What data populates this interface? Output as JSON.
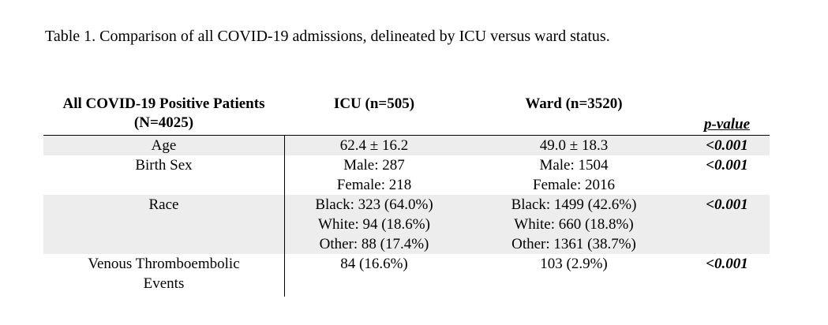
{
  "caption": "Table 1. Comparison of all COVID-19 admissions, delineated by ICU versus ward status.",
  "headers": {
    "group_line1": "All COVID-19 Positive",
    "group_line2": "Patients (N=4025)",
    "icu_line1": "ICU",
    "icu_line2": "(n=505)",
    "ward_line1": "Ward",
    "ward_line2": "(n=3520)",
    "pvalue": "p-value"
  },
  "rows": [
    {
      "label": [
        "Age"
      ],
      "icu": [
        "62.4 ± 16.2"
      ],
      "ward": [
        "49.0 ± 18.3"
      ],
      "p": "<0.001"
    },
    {
      "label": [
        "Birth Sex"
      ],
      "icu": [
        "Male: 287",
        "Female: 218"
      ],
      "ward": [
        "Male: 1504",
        "Female: 2016"
      ],
      "p": "<0.001"
    },
    {
      "label": [
        "Race"
      ],
      "icu": [
        "Black: 323 (64.0%)",
        "White: 94 (18.6%)",
        "Other: 88 (17.4%)"
      ],
      "ward": [
        "Black: 1499 (42.6%)",
        "White: 660 (18.8%)",
        "Other: 1361 (38.7%)"
      ],
      "p": "<0.001"
    },
    {
      "label": [
        "Venous Thromboembolic",
        "Events"
      ],
      "icu": [
        "84 (16.6%)"
      ],
      "ward": [
        "103 (2.9%)"
      ],
      "p": "<0.001"
    }
  ]
}
